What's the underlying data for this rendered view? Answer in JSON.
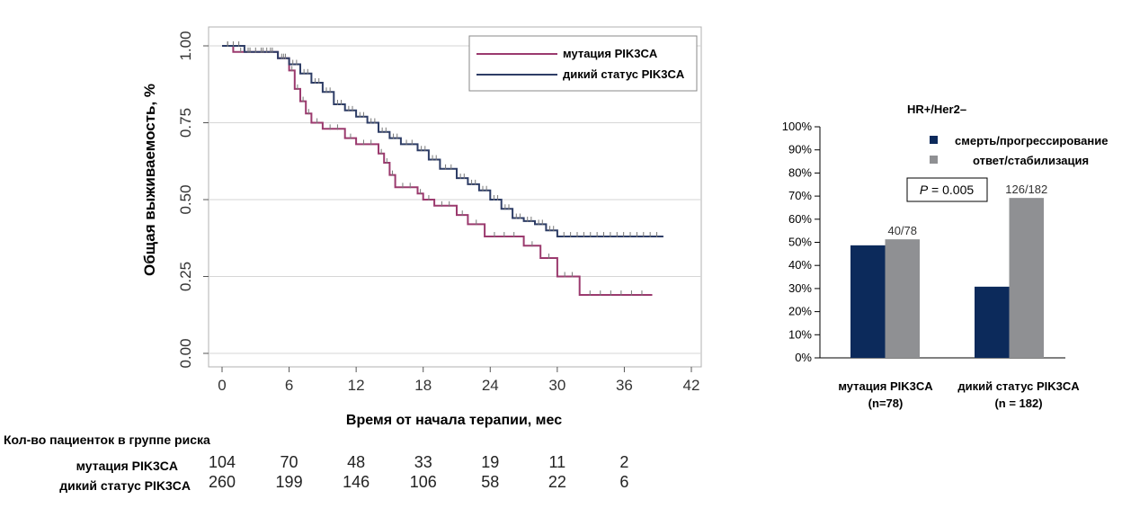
{
  "chart_data": [
    {
      "type": "line",
      "ylabel": "Общая выживаемость, %",
      "xlabel": "Время от начала терапии, мес",
      "xlim": [
        0,
        42
      ],
      "ylim": [
        0,
        1
      ],
      "x_ticks": [
        "0",
        "6",
        "12",
        "18",
        "24",
        "30",
        "36",
        "42"
      ],
      "y_ticks": [
        "0.00",
        "0.25",
        "0.50",
        "0.75",
        "1.00"
      ],
      "grid": "horizontal",
      "legend_position": "top-right",
      "series": [
        {
          "name": "мутация PIK3CA",
          "color": "#9b3a6e",
          "points": [
            [
              0,
              1.0
            ],
            [
              1,
              0.98
            ],
            [
              3,
              0.98
            ],
            [
              5,
              0.96
            ],
            [
              6,
              0.92
            ],
            [
              6.5,
              0.86
            ],
            [
              7,
              0.82
            ],
            [
              7.5,
              0.78
            ],
            [
              8,
              0.75
            ],
            [
              9,
              0.73
            ],
            [
              11,
              0.7
            ],
            [
              12,
              0.68
            ],
            [
              14,
              0.65
            ],
            [
              14.5,
              0.62
            ],
            [
              15,
              0.58
            ],
            [
              15.5,
              0.54
            ],
            [
              17.5,
              0.52
            ],
            [
              18,
              0.5
            ],
            [
              19,
              0.48
            ],
            [
              21,
              0.45
            ],
            [
              22,
              0.42
            ],
            [
              23.5,
              0.38
            ],
            [
              27,
              0.35
            ],
            [
              28.5,
              0.31
            ],
            [
              30,
              0.25
            ],
            [
              32,
              0.19
            ],
            [
              38.5,
              0.19
            ]
          ]
        },
        {
          "name": "дикий статус PIK3CA",
          "color": "#2e3d66",
          "points": [
            [
              0,
              1.0
            ],
            [
              2,
              0.98
            ],
            [
              5,
              0.96
            ],
            [
              6,
              0.94
            ],
            [
              7,
              0.91
            ],
            [
              8,
              0.88
            ],
            [
              9,
              0.85
            ],
            [
              10,
              0.81
            ],
            [
              11,
              0.79
            ],
            [
              12,
              0.77
            ],
            [
              13,
              0.75
            ],
            [
              14,
              0.72
            ],
            [
              15,
              0.7
            ],
            [
              16,
              0.68
            ],
            [
              17.5,
              0.66
            ],
            [
              18.5,
              0.63
            ],
            [
              19.5,
              0.6
            ],
            [
              21,
              0.57
            ],
            [
              22,
              0.55
            ],
            [
              23,
              0.53
            ],
            [
              24,
              0.5
            ],
            [
              25,
              0.47
            ],
            [
              26,
              0.44
            ],
            [
              27,
              0.43
            ],
            [
              28,
              0.42
            ],
            [
              29,
              0.4
            ],
            [
              30,
              0.38
            ],
            [
              39.5,
              0.38
            ]
          ]
        }
      ],
      "risk_table": {
        "title": "Кол-во пациенток в группе риска",
        "rows": [
          {
            "label": "мутация PIK3CA",
            "values": [
              "104",
              "70",
              "48",
              "33",
              "19",
              "11",
              "2"
            ]
          },
          {
            "label": "дикий статус PIK3CA",
            "values": [
              "260",
              "199",
              "146",
              "106",
              "58",
              "22",
              "6"
            ]
          }
        ]
      }
    },
    {
      "type": "bar",
      "title": "HR+/Her2–",
      "categories": [
        "мутация PIK3CA",
        "дикий статус PIK3CA"
      ],
      "category_sublabels": [
        "(n=78)",
        "(n = 182)"
      ],
      "ylim": [
        0,
        100
      ],
      "y_ticks": [
        "0%",
        "10%",
        "20%",
        "30%",
        "40%",
        "50%",
        "60%",
        "70%",
        "80%",
        "90%",
        "100%"
      ],
      "series": [
        {
          "name": "смерть/прогрессирование",
          "color": "#0c2a5b",
          "values": [
            48.7,
            30.8
          ]
        },
        {
          "name": "ответ/стабилизация",
          "color": "#8f9093",
          "values": [
            51.3,
            69.2
          ],
          "labels": [
            "40/78",
            "126/182"
          ]
        }
      ],
      "annotation_prefix": "P",
      "annotation_value": " = 0.005",
      "legend_position": "top-right"
    }
  ]
}
